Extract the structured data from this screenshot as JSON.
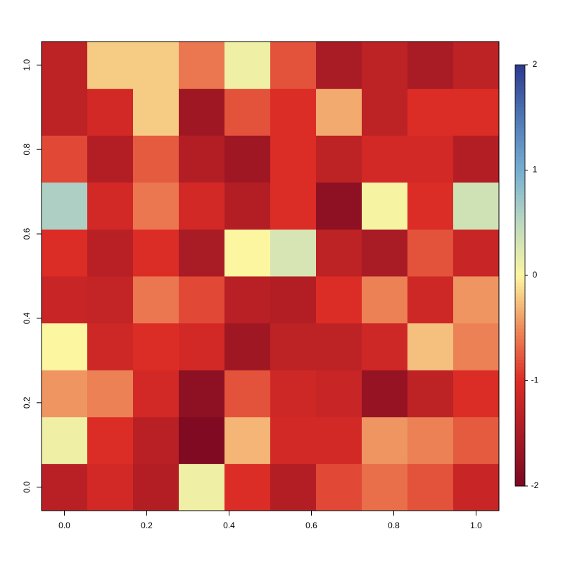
{
  "chart_data": {
    "type": "heatmap",
    "x": [
      0,
      0.1111,
      0.2222,
      0.3333,
      0.4444,
      0.5556,
      0.6667,
      0.7778,
      0.8889,
      1
    ],
    "y": [
      0,
      0.1111,
      0.2222,
      0.3333,
      0.4444,
      0.5556,
      0.6667,
      0.7778,
      0.8889,
      1
    ],
    "z": [
      [
        -1.35,
        -1.1,
        -1.4,
        0.1,
        -1.0,
        -1.4,
        -0.85,
        -0.65,
        -0.8,
        -1.2
      ],
      [
        0.1,
        -1.0,
        -1.35,
        -1.95,
        -0.3,
        -1.1,
        -1.1,
        -0.45,
        -0.55,
        -0.75
      ],
      [
        -0.45,
        -0.55,
        -1.1,
        -1.8,
        -0.8,
        -1.15,
        -1.2,
        -1.7,
        -1.3,
        -1.0
      ],
      [
        0.0,
        -1.15,
        -1.0,
        -1.1,
        -1.6,
        -1.3,
        -1.3,
        -1.15,
        -0.25,
        -0.55
      ],
      [
        -1.2,
        -1.25,
        -0.6,
        -0.85,
        -1.35,
        -1.4,
        -1.0,
        -0.55,
        -1.15,
        -0.45
      ],
      [
        -1.0,
        -1.35,
        -1.0,
        -1.5,
        0.0,
        0.3,
        -1.3,
        -1.5,
        -0.8,
        -1.2
      ],
      [
        0.6,
        -1.1,
        -0.6,
        -1.1,
        -1.4,
        -1.0,
        -1.8,
        0.05,
        -1.0,
        0.35
      ],
      [
        -0.85,
        -1.4,
        -0.75,
        -1.4,
        -1.6,
        -1.0,
        -1.3,
        -1.1,
        -1.1,
        -1.4
      ],
      [
        -1.3,
        -1.1,
        -0.2,
        -1.6,
        -0.8,
        -1.0,
        -0.35,
        -1.3,
        -1.0,
        -1.0
      ],
      [
        -1.3,
        -0.2,
        -0.2,
        -0.6,
        0.1,
        -0.8,
        -1.5,
        -1.3,
        -1.5,
        -1.3
      ]
    ],
    "xlim": [
      -0.0556,
      1.0556
    ],
    "ylim": [
      -0.0556,
      1.0556
    ],
    "xticks": [
      {
        "value": 0,
        "label": "0.0"
      },
      0.2,
      0.4,
      0.6,
      0.8,
      {
        "value": 1,
        "label": "1.0"
      }
    ],
    "yticks": [
      {
        "value": 0,
        "label": "0.0"
      },
      0.2,
      0.4,
      0.6,
      0.8,
      {
        "value": 1,
        "label": "1.0"
      }
    ],
    "zlim": [
      -2,
      2
    ],
    "colorbar_ticks": [
      -2,
      -1,
      0,
      1,
      2
    ],
    "colorscale": [
      "#7a0822",
      "#a91b25",
      "#dc2c26",
      "#ee8a5a",
      "#fcf6a0",
      "#bcd9c0",
      "#75aed2",
      "#4f78b5",
      "#2c3a8f"
    ]
  }
}
